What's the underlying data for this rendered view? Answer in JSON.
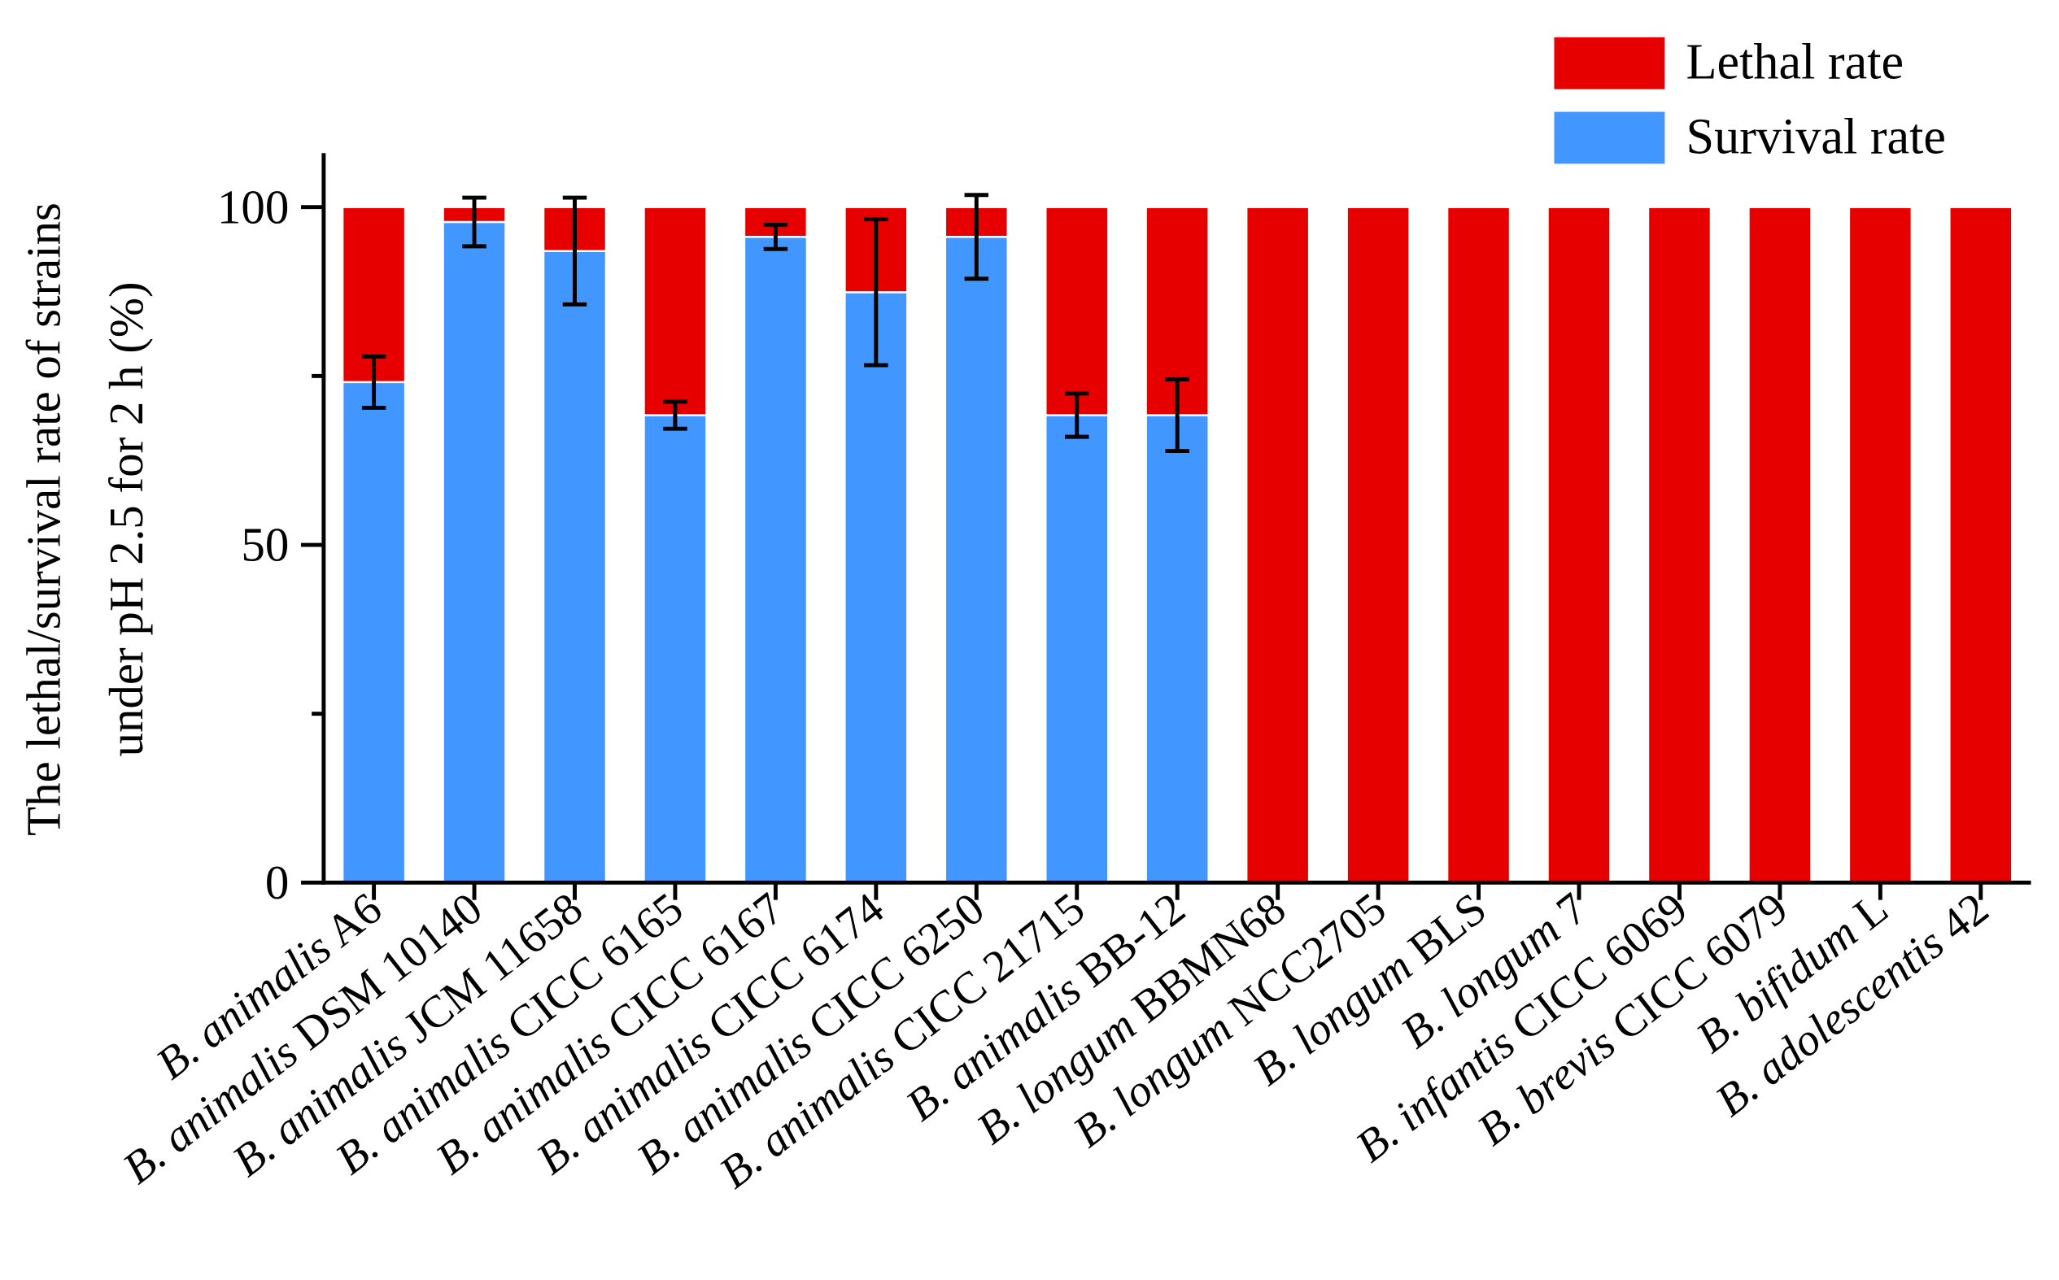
{
  "chart_data": {
    "type": "stacked_bar",
    "y_label": [
      "The lethal/survival rate of strains",
      "under pH 2.5 for 2 h (%)"
    ],
    "categories": [
      "B. animalis A6",
      "B. animalis DSM 10140",
      "B. animalis JCM 11658",
      "B. animalis CICC 6165",
      "B. animalis CICC 6167",
      "B. animalis CICC 6174",
      "B. animalis CICC 6250",
      "B. animalis CICC 21715",
      "B. animalis BB-12",
      "B. longum BBMN68",
      "B. longum NCC2705",
      "B. longum BLS",
      "B. longum 7",
      "B. infantis CICC 6069",
      "B. brevis CICC 6079",
      "B. bifidum L",
      "B. adolescentis 42"
    ],
    "series": [
      {
        "name": "Survival rate",
        "color": "#4196ff",
        "values": [
          74.1,
          97.8,
          93.5,
          69.2,
          95.6,
          87.4,
          95.6,
          69.2,
          69.2,
          0,
          0,
          0,
          0,
          0,
          0,
          0,
          0
        ],
        "errors": [
          3.8,
          3.6,
          7.9,
          2,
          1.8,
          10.8,
          6.2,
          3.2,
          5.3,
          null,
          null,
          null,
          null,
          null,
          null,
          null,
          null
        ]
      },
      {
        "name": "Lethal rate",
        "color": "#e60000",
        "values": [
          25.9,
          2.2,
          6.5,
          30.8,
          4.4,
          12.6,
          4.4,
          30.8,
          30.8,
          100,
          100,
          100,
          100,
          100,
          100,
          100,
          100
        ]
      }
    ],
    "ylim": [
      0,
      108
    ],
    "yticks": [
      0,
      50,
      100
    ],
    "minor_yticks": [
      25,
      75
    ]
  }
}
